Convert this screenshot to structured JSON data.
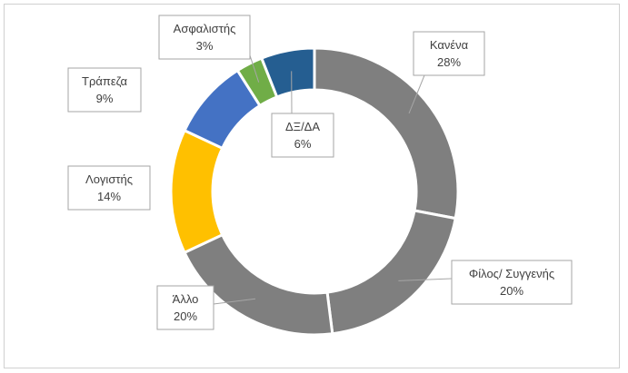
{
  "chart_data": {
    "type": "pie",
    "variant": "doughnut",
    "title": "",
    "legend": "none",
    "slices": [
      {
        "label": "Κανένα",
        "value": 28,
        "value_label": "28%",
        "color": "#7f7f7f"
      },
      {
        "label": "Φίλος/ Συγγενής",
        "value": 20,
        "value_label": "20%",
        "color": "#7f7f7f"
      },
      {
        "label": "Άλλο",
        "value": 20,
        "value_label": "20%",
        "color": "#7f7f7f"
      },
      {
        "label": "Λογιστής",
        "value": 14,
        "value_label": "14%",
        "color": "#ffc000"
      },
      {
        "label": "Τράπεζα",
        "value": 9,
        "value_label": "9%",
        "color": "#4472c4"
      },
      {
        "label": "Ασφαλιστής",
        "value": 3,
        "value_label": "3%",
        "color": "#70ad47"
      },
      {
        "label": "ΔΞ/ΔΑ",
        "value": 6,
        "value_label": "6%",
        "color": "#255e91"
      }
    ]
  }
}
